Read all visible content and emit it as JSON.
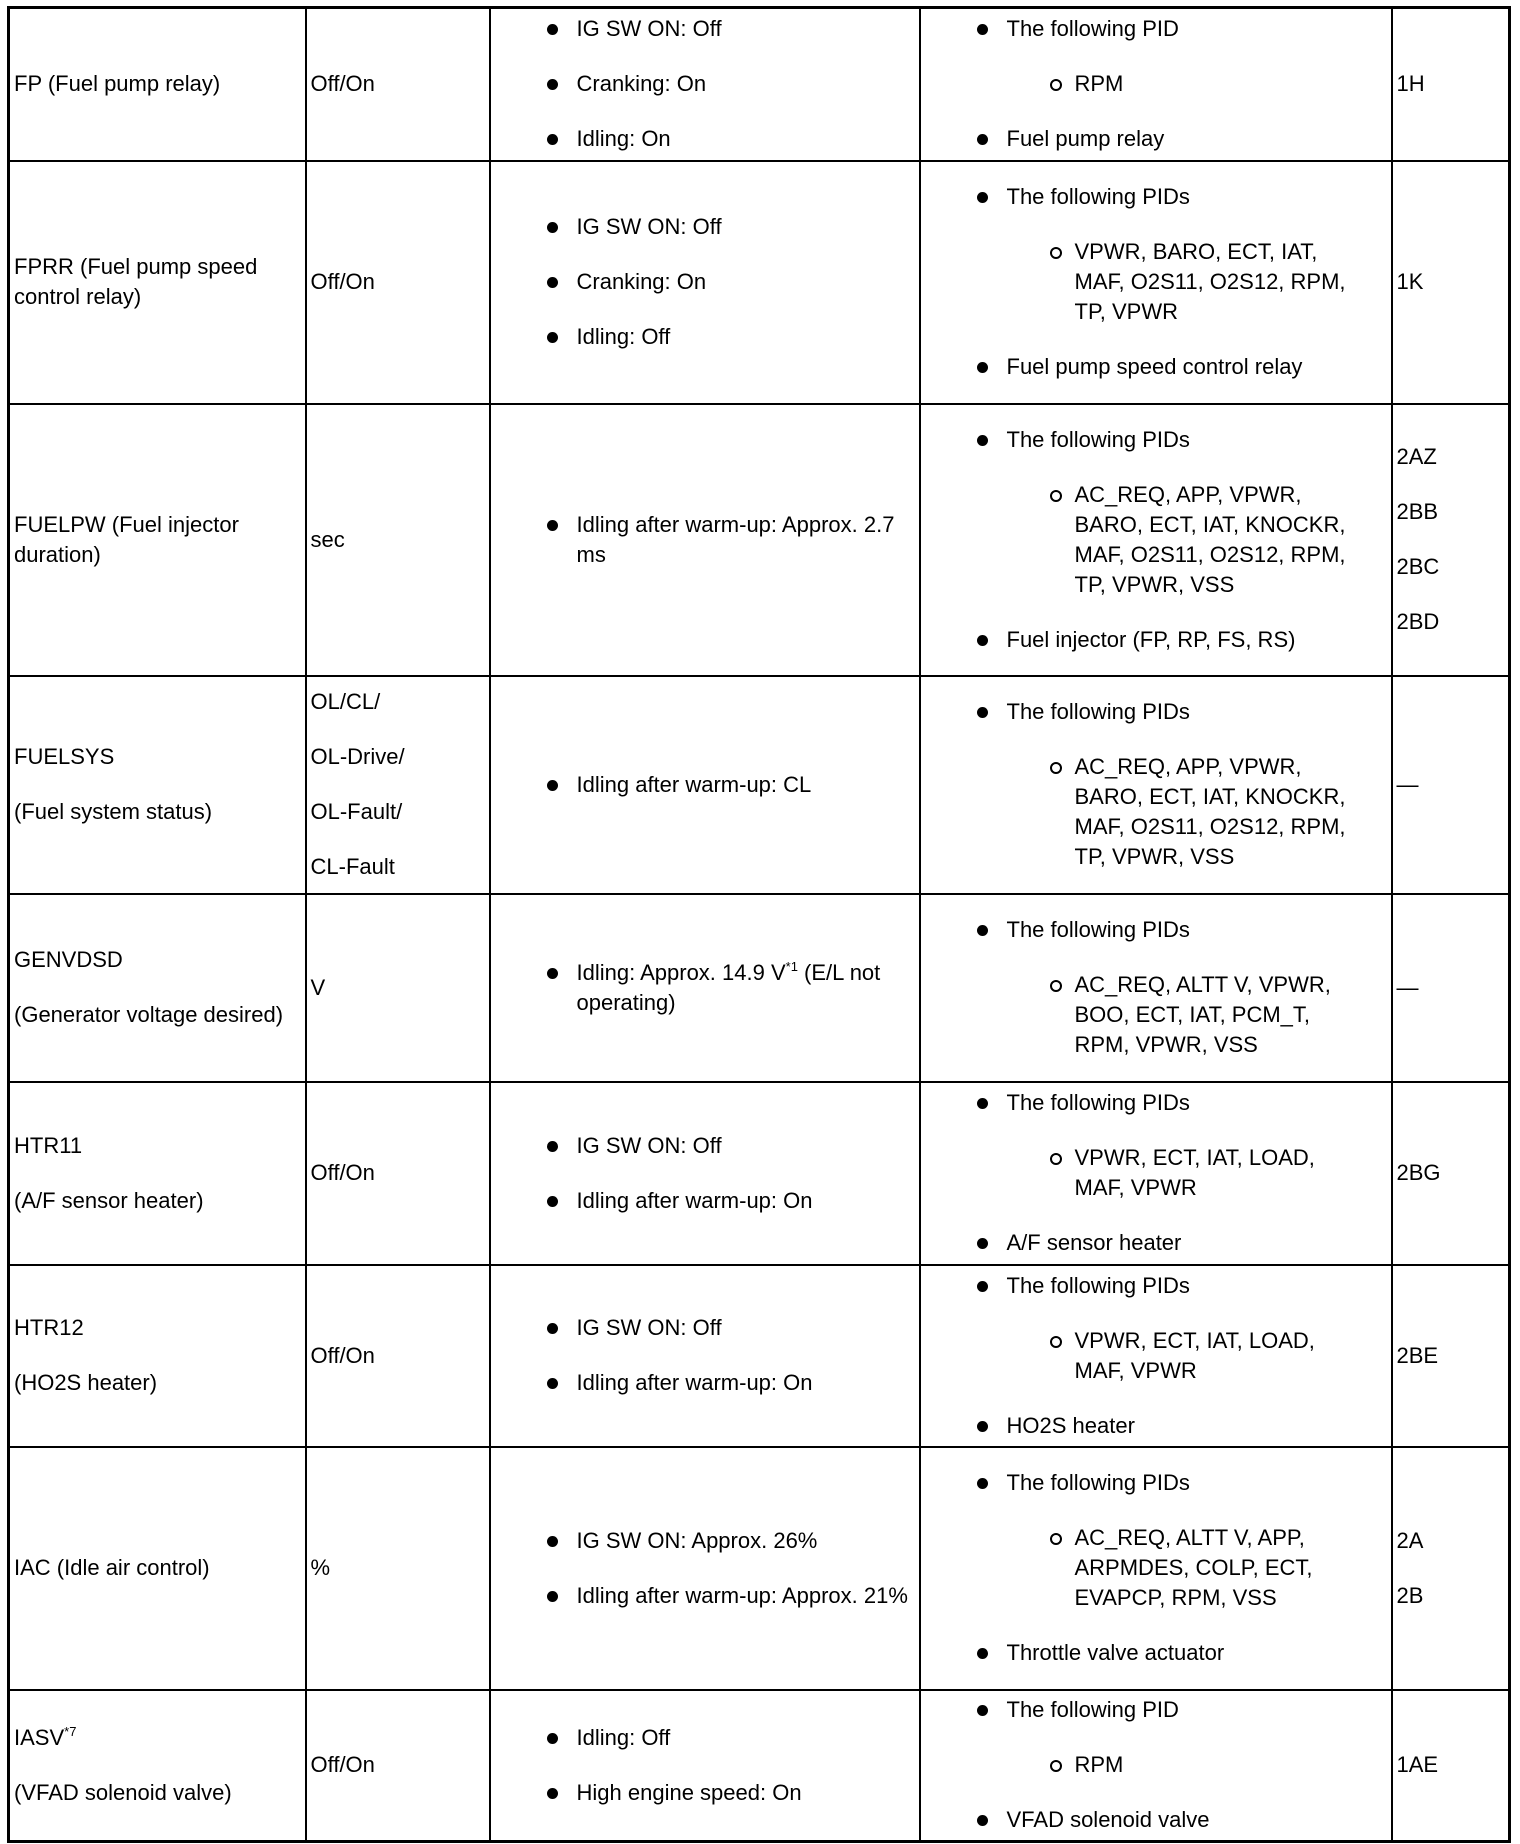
{
  "rows": [
    {
      "name": [
        "FP (Fuel pump relay)"
      ],
      "unit": [
        "Off/On"
      ],
      "conditions": [
        {
          "text": "IG SW ON: Off"
        },
        {
          "text": "Cranking: On"
        },
        {
          "text": "Idling: On"
        }
      ],
      "pids": {
        "header": "The following PID",
        "sub": "RPM",
        "after": "Fuel pump relay"
      },
      "terminal": [
        "1H"
      ]
    },
    {
      "name": [
        "FPRR (Fuel pump speed control relay)"
      ],
      "unit": [
        "Off/On"
      ],
      "conditions": [
        {
          "text": "IG SW ON: Off"
        },
        {
          "text": "Cranking: On"
        },
        {
          "text": "Idling: Off"
        }
      ],
      "pids": {
        "header": "The following PIDs",
        "sub": "VPWR, BARO, ECT, IAT, MAF, O2S11, O2S12, RPM, TP, VPWR",
        "after": "Fuel pump speed control relay"
      },
      "terminal": [
        "1K"
      ]
    },
    {
      "name": [
        "FUELPW (Fuel injector duration)"
      ],
      "unit": [
        "sec"
      ],
      "conditions": [
        {
          "text": "Idling after warm-up: Approx. 2.7 ms"
        }
      ],
      "pids": {
        "header": "The following PIDs",
        "sub": "AC_REQ, APP, VPWR, BARO, ECT, IAT, KNOCKR, MAF, O2S11, O2S12, RPM, TP, VPWR, VSS",
        "after": "Fuel injector (FP, RP, FS, RS)"
      },
      "terminal": [
        "2AZ",
        "2BB",
        "2BC",
        "2BD"
      ]
    },
    {
      "name": [
        "FUELSYS",
        "(Fuel system status)"
      ],
      "unit": [
        "OL/CL/",
        "OL-Drive/",
        "OL-Fault/",
        "CL-Fault"
      ],
      "conditions": [
        {
          "text": "Idling after warm-up: CL"
        }
      ],
      "pids": {
        "header": "The following PIDs",
        "sub": "AC_REQ, APP, VPWR, BARO, ECT, IAT, KNOCKR, MAF, O2S11, O2S12, RPM, TP, VPWR, VSS"
      },
      "terminal": [
        "—"
      ]
    },
    {
      "name": [
        "GENVDSD",
        "(Generator voltage desired)"
      ],
      "unit": [
        "V"
      ],
      "conditions": [
        {
          "text": "Idling: Approx. 14.9 V",
          "sup": "*1",
          "after": " (E/L not operating)"
        }
      ],
      "pids": {
        "header": "The following PIDs",
        "sub": "AC_REQ, ALTT V, VPWR, BOO, ECT, IAT, PCM_T, RPM, VPWR, VSS"
      },
      "terminal": [
        "—"
      ]
    },
    {
      "name": [
        "HTR11",
        "(A/F sensor heater)"
      ],
      "unit": [
        "Off/On"
      ],
      "conditions": [
        {
          "text": "IG SW ON: Off"
        },
        {
          "text": "Idling after warm-up: On"
        }
      ],
      "pids": {
        "header": "The following PIDs",
        "sub": "VPWR, ECT, IAT, LOAD, MAF, VPWR",
        "after": "A/F sensor heater"
      },
      "terminal": [
        "2BG"
      ]
    },
    {
      "name": [
        "HTR12",
        "(HO2S heater)"
      ],
      "unit": [
        "Off/On"
      ],
      "conditions": [
        {
          "text": "IG SW ON: Off"
        },
        {
          "text": "Idling after warm-up: On"
        }
      ],
      "pids": {
        "header": "The following PIDs",
        "sub": "VPWR, ECT, IAT, LOAD, MAF, VPWR",
        "after": "HO2S heater"
      },
      "terminal": [
        "2BE"
      ]
    },
    {
      "name": [
        "IAC (Idle air control)"
      ],
      "unit": [
        "%"
      ],
      "conditions": [
        {
          "text": "IG SW ON: Approx. 26%"
        },
        {
          "text": "Idling after warm-up: Approx. 21%"
        }
      ],
      "pids": {
        "header": "The following PIDs",
        "sub": "AC_REQ, ALTT V, APP, ARPMDES, COLP, ECT, EVAPCP, RPM, VSS",
        "after": "Throttle valve actuator"
      },
      "terminal": [
        "2A",
        "2B"
      ]
    },
    {
      "name": [
        {
          "text": "IASV",
          "sup": "*7"
        },
        "(VFAD solenoid valve)"
      ],
      "unit": [
        "Off/On"
      ],
      "conditions": [
        {
          "text": "Idling: Off"
        },
        {
          "text": "High engine speed: On"
        }
      ],
      "pids": {
        "header": "The following PID",
        "sub": "RPM",
        "after": "VFAD solenoid valve"
      },
      "terminal": [
        "1AE"
      ]
    }
  ]
}
